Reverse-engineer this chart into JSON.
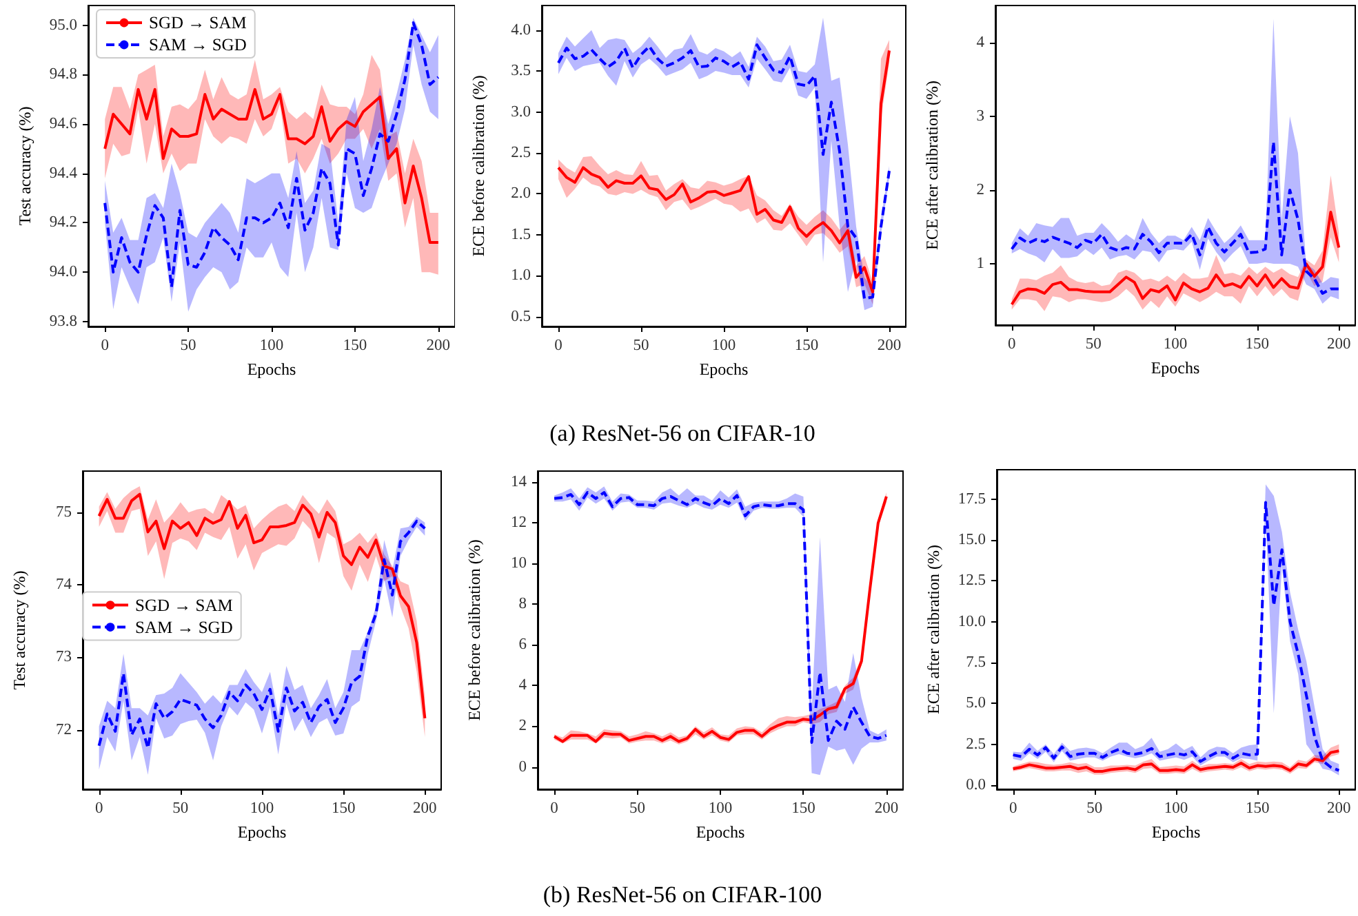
{
  "chart_data": [
    {
      "type": "line",
      "xlabel": "Epochs",
      "ylabel": "Test accuracy (%)",
      "legend": "top left",
      "xlim": [
        -10,
        210
      ],
      "xticks": [
        0,
        50,
        100,
        150,
        200
      ],
      "ylim": [
        93.78,
        95.08
      ],
      "yticks": [
        93.8,
        {
          "value": 94,
          "label": "94.0"
        },
        94.2,
        94.4,
        94.6,
        94.8,
        {
          "value": 95,
          "label": "95.0"
        }
      ],
      "x": [
        0,
        5,
        10,
        15,
        20,
        25,
        30,
        35,
        40,
        45,
        50,
        55,
        60,
        65,
        70,
        75,
        80,
        85,
        90,
        95,
        100,
        105,
        110,
        115,
        120,
        125,
        130,
        135,
        140,
        145,
        150,
        155,
        160,
        165,
        170,
        175,
        180,
        185,
        190,
        195,
        200
      ],
      "series": [
        {
          "name": "SGD → SAM",
          "color": "#ff0000",
          "line_style": "solid",
          "values": [
            94.5,
            94.64,
            94.6,
            94.56,
            94.74,
            94.62,
            94.74,
            94.46,
            94.58,
            94.55,
            94.55,
            94.56,
            94.72,
            94.62,
            94.66,
            94.64,
            94.62,
            94.62,
            94.74,
            94.62,
            94.64,
            94.72,
            94.54,
            94.54,
            94.52,
            94.55,
            94.67,
            94.53,
            94.58,
            94.61,
            94.59,
            94.65,
            94.68,
            94.71,
            94.46,
            94.5,
            94.28,
            94.43,
            94.3,
            94.12,
            94.12
          ],
          "upper": [
            94.62,
            94.75,
            94.75,
            94.66,
            94.8,
            94.82,
            94.84,
            94.55,
            94.67,
            94.68,
            94.66,
            94.7,
            94.82,
            94.7,
            94.79,
            94.72,
            94.7,
            94.72,
            94.86,
            94.7,
            94.72,
            94.75,
            94.65,
            94.62,
            94.65,
            94.62,
            94.76,
            94.68,
            94.67,
            94.67,
            94.64,
            94.72,
            94.88,
            94.82,
            94.55,
            94.57,
            94.4,
            94.54,
            94.45,
            94.24,
            94.24
          ],
          "lower": [
            94.38,
            94.52,
            94.47,
            94.48,
            94.66,
            94.44,
            94.6,
            94.4,
            94.48,
            94.41,
            94.44,
            94.44,
            94.62,
            94.55,
            94.52,
            94.55,
            94.54,
            94.52,
            94.62,
            94.55,
            94.58,
            94.68,
            94.44,
            94.46,
            94.4,
            94.46,
            94.54,
            94.44,
            94.48,
            94.54,
            94.54,
            94.58,
            94.5,
            94.58,
            94.37,
            94.4,
            94.18,
            94.3,
            94.0,
            94.0,
            93.99
          ]
        },
        {
          "name": "SAM → SGD",
          "color": "#0000ff",
          "line_style": "dashed",
          "values": [
            94.28,
            94.0,
            94.14,
            94.04,
            94.0,
            94.15,
            94.27,
            94.22,
            93.94,
            94.25,
            94.03,
            94.02,
            94.08,
            94.18,
            94.14,
            94.11,
            94.05,
            94.22,
            94.22,
            94.2,
            94.22,
            94.28,
            94.18,
            94.38,
            94.17,
            94.24,
            94.42,
            94.36,
            94.11,
            94.5,
            94.48,
            94.31,
            94.42,
            94.56,
            94.53,
            94.64,
            94.78,
            95.01,
            94.92,
            94.76,
            94.79
          ],
          "upper": [
            94.37,
            94.16,
            94.22,
            94.13,
            94.13,
            94.3,
            94.32,
            94.26,
            94.44,
            94.32,
            94.16,
            94.14,
            94.2,
            94.24,
            94.28,
            94.24,
            94.16,
            94.38,
            94.36,
            94.38,
            94.4,
            94.4,
            94.3,
            94.49,
            94.28,
            94.33,
            94.52,
            94.5,
            94.2,
            94.62,
            94.71,
            94.45,
            94.58,
            94.75,
            94.6,
            94.72,
            94.86,
            95.03,
            94.96,
            94.89,
            94.96
          ],
          "lower": [
            94.2,
            93.85,
            94.02,
            93.94,
            93.87,
            94.02,
            94.04,
            94.14,
            93.88,
            94.12,
            93.84,
            93.93,
            93.98,
            94.02,
            94.0,
            93.93,
            93.96,
            94.1,
            94.06,
            94.06,
            94.12,
            94.02,
            93.98,
            94.24,
            94.0,
            94.1,
            94.3,
            94.1,
            94.09,
            94.4,
            94.26,
            94.24,
            94.26,
            94.36,
            94.44,
            94.52,
            94.66,
            94.92,
            94.76,
            94.65,
            94.62
          ]
        }
      ]
    },
    {
      "type": "line",
      "xlabel": "Epochs",
      "ylabel": "ECE before calibration (%)",
      "annotations": [
        "(a) ResNet-56 on CIFAR-10"
      ],
      "xlim": [
        -10,
        210
      ],
      "xticks": [
        0,
        50,
        100,
        150,
        200
      ],
      "ylim": [
        0.38,
        4.3
      ],
      "yticks": [
        0.5,
        {
          "value": 1,
          "label": "1.0"
        },
        1.5,
        {
          "value": 2,
          "label": "2.0"
        },
        2.5,
        {
          "value": 3,
          "label": "3.0"
        },
        3.5,
        {
          "value": 4,
          "label": "4.0"
        }
      ],
      "x": [
        0,
        5,
        10,
        15,
        20,
        25,
        30,
        35,
        40,
        45,
        50,
        55,
        60,
        65,
        70,
        75,
        80,
        85,
        90,
        95,
        100,
        105,
        110,
        115,
        120,
        125,
        130,
        135,
        140,
        145,
        150,
        155,
        160,
        165,
        170,
        175,
        180,
        185,
        190,
        195,
        200
      ],
      "series": [
        {
          "color": "#ff0000",
          "line_style": "solid",
          "values": [
            2.32,
            2.2,
            2.14,
            2.32,
            2.24,
            2.2,
            2.08,
            2.16,
            2.13,
            2.13,
            2.22,
            2.07,
            2.05,
            1.93,
            1.99,
            2.12,
            1.9,
            1.95,
            2.02,
            2.03,
            1.98,
            2.01,
            2.04,
            2.21,
            1.75,
            1.81,
            1.68,
            1.65,
            1.84,
            1.58,
            1.48,
            1.58,
            1.65,
            1.55,
            1.4,
            1.55,
            0.98,
            1.1,
            0.8,
            3.1,
            3.75
          ],
          "upper": [
            2.42,
            2.32,
            2.26,
            2.45,
            2.46,
            2.34,
            2.24,
            2.29,
            2.24,
            2.23,
            2.4,
            2.22,
            2.23,
            2.04,
            2.12,
            2.18,
            2.08,
            2.06,
            2.16,
            2.14,
            2.1,
            2.13,
            2.18,
            2.22,
            1.98,
            1.92,
            1.8,
            1.73,
            1.88,
            1.72,
            1.62,
            1.72,
            1.8,
            1.7,
            1.56,
            1.68,
            1.12,
            1.24,
            0.92,
            3.65,
            3.88
          ],
          "lower": [
            2.18,
            1.95,
            2.06,
            2.2,
            2.12,
            2.09,
            2.0,
            1.98,
            2.02,
            2.0,
            2.05,
            1.99,
            1.96,
            1.8,
            1.9,
            1.93,
            1.8,
            1.84,
            1.89,
            1.94,
            1.88,
            1.86,
            1.78,
            1.82,
            1.64,
            1.7,
            1.56,
            1.55,
            1.64,
            1.5,
            1.36,
            1.5,
            1.52,
            1.42,
            1.28,
            1.36,
            0.86,
            0.9,
            0.65,
            2.92,
            3.6
          ]
        },
        {
          "color": "#0000ff",
          "line_style": "dashed",
          "values": [
            3.6,
            3.78,
            3.65,
            3.68,
            3.76,
            3.65,
            3.55,
            3.62,
            3.78,
            3.54,
            3.7,
            3.8,
            3.65,
            3.56,
            3.6,
            3.66,
            3.75,
            3.55,
            3.56,
            3.66,
            3.62,
            3.55,
            3.61,
            3.4,
            3.82,
            3.66,
            3.51,
            3.48,
            3.68,
            3.34,
            3.32,
            3.44,
            2.48,
            3.12,
            2.52,
            1.6,
            1.46,
            0.72,
            0.74,
            1.6,
            2.28
          ],
          "upper": [
            3.72,
            3.92,
            3.8,
            3.9,
            4.0,
            3.78,
            3.88,
            3.9,
            3.88,
            3.72,
            3.8,
            3.92,
            3.8,
            3.66,
            3.76,
            3.78,
            3.95,
            3.74,
            3.7,
            3.78,
            3.74,
            3.67,
            3.74,
            3.55,
            3.92,
            3.8,
            3.62,
            3.64,
            3.82,
            3.5,
            3.48,
            3.58,
            4.15,
            3.38,
            3.42,
            2.6,
            1.6,
            0.98,
            0.86,
            1.7,
            2.34
          ],
          "lower": [
            3.46,
            3.66,
            3.5,
            3.56,
            3.58,
            3.6,
            3.44,
            3.32,
            3.62,
            3.42,
            3.58,
            3.65,
            3.56,
            3.44,
            3.48,
            3.52,
            3.6,
            3.4,
            3.44,
            3.5,
            3.48,
            3.45,
            3.45,
            3.3,
            3.65,
            3.52,
            3.38,
            3.36,
            3.54,
            3.2,
            3.16,
            3.3,
            1.16,
            2.65,
            1.6,
            0.8,
            1.2,
            0.58,
            0.62,
            1.5,
            2.2
          ]
        }
      ]
    },
    {
      "type": "line",
      "xlabel": "Epochs",
      "ylabel": "ECE after calibration (%)",
      "xlim": [
        -10,
        210
      ],
      "xticks": [
        0,
        50,
        100,
        150,
        200
      ],
      "ylim": [
        0.17,
        4.5
      ],
      "yticks": [
        1,
        2,
        3,
        4
      ],
      "x": [
        0,
        5,
        10,
        15,
        20,
        25,
        30,
        35,
        40,
        45,
        50,
        55,
        60,
        65,
        70,
        75,
        80,
        85,
        90,
        95,
        100,
        105,
        110,
        115,
        120,
        125,
        130,
        135,
        140,
        145,
        150,
        155,
        160,
        165,
        170,
        175,
        180,
        185,
        190,
        195,
        200
      ],
      "series": [
        {
          "color": "#ff0000",
          "line_style": "solid",
          "values": [
            0.45,
            0.62,
            0.66,
            0.65,
            0.6,
            0.72,
            0.75,
            0.65,
            0.65,
            0.63,
            0.62,
            0.62,
            0.62,
            0.72,
            0.82,
            0.75,
            0.53,
            0.65,
            0.62,
            0.7,
            0.51,
            0.74,
            0.66,
            0.62,
            0.67,
            0.85,
            0.7,
            0.73,
            0.68,
            0.83,
            0.7,
            0.85,
            0.68,
            0.8,
            0.69,
            0.67,
            1.0,
            0.83,
            0.96,
            1.7,
            1.22
          ],
          "upper": [
            0.52,
            0.8,
            0.8,
            0.78,
            0.84,
            0.88,
            0.98,
            0.82,
            0.76,
            0.74,
            0.76,
            0.7,
            0.72,
            0.88,
            0.92,
            0.88,
            0.78,
            0.8,
            0.76,
            0.84,
            0.76,
            0.88,
            0.8,
            0.8,
            0.82,
            1.12,
            0.86,
            0.88,
            0.84,
            0.96,
            0.86,
            0.96,
            0.88,
            0.94,
            0.86,
            0.82,
            1.06,
            0.98,
            1.18,
            2.2,
            1.42
          ],
          "lower": [
            0.38,
            0.52,
            0.52,
            0.5,
            0.36,
            0.56,
            0.54,
            0.48,
            0.52,
            0.52,
            0.5,
            0.48,
            0.5,
            0.56,
            0.66,
            0.56,
            0.38,
            0.5,
            0.4,
            0.56,
            0.42,
            0.6,
            0.54,
            0.48,
            0.54,
            0.62,
            0.56,
            0.56,
            0.46,
            0.7,
            0.56,
            0.7,
            0.56,
            0.66,
            0.54,
            0.5,
            0.9,
            0.7,
            0.76,
            1.36,
            1.02
          ]
        },
        {
          "color": "#0000ff",
          "line_style": "dashed",
          "values": [
            1.2,
            1.35,
            1.28,
            1.33,
            1.3,
            1.36,
            1.32,
            1.28,
            1.22,
            1.32,
            1.28,
            1.4,
            1.22,
            1.18,
            1.22,
            1.2,
            1.4,
            1.3,
            1.15,
            1.28,
            1.28,
            1.28,
            1.4,
            1.12,
            1.5,
            1.28,
            1.16,
            1.28,
            1.4,
            1.15,
            1.16,
            1.2,
            2.65,
            1.12,
            2.0,
            1.6,
            0.9,
            0.8,
            0.6,
            0.66,
            0.66
          ],
          "upper": [
            1.28,
            1.48,
            1.38,
            1.55,
            1.52,
            1.5,
            1.62,
            1.62,
            1.38,
            1.42,
            1.42,
            1.55,
            1.44,
            1.3,
            1.4,
            1.32,
            1.62,
            1.42,
            1.28,
            1.38,
            1.38,
            1.32,
            1.5,
            1.32,
            1.62,
            1.44,
            1.28,
            1.38,
            1.52,
            1.32,
            1.32,
            1.32,
            4.32,
            1.6,
            3.0,
            2.5,
            1.0,
            0.92,
            0.74,
            0.82,
            0.8
          ],
          "lower": [
            1.14,
            1.2,
            1.14,
            1.1,
            1.02,
            1.2,
            1.08,
            1.08,
            1.1,
            1.2,
            1.12,
            1.22,
            1.06,
            1.1,
            1.12,
            1.06,
            1.18,
            1.16,
            1.02,
            1.18,
            1.2,
            1.18,
            1.3,
            0.92,
            1.34,
            1.16,
            1.02,
            1.14,
            1.24,
            1.0,
            1.0,
            1.02,
            1.0,
            1.0,
            1.0,
            0.96,
            0.72,
            0.66,
            0.46,
            0.56,
            0.52
          ]
        }
      ]
    },
    {
      "type": "line",
      "xlabel": "Epochs",
      "ylabel": "Test accuracy (%)",
      "legend": "left",
      "xlim": [
        -10,
        210
      ],
      "xticks": [
        0,
        50,
        100,
        150,
        200
      ],
      "ylim": [
        71.18,
        75.57
      ],
      "yticks": [
        72,
        73,
        74,
        75
      ],
      "x": [
        0,
        5,
        10,
        15,
        20,
        25,
        30,
        35,
        40,
        45,
        50,
        55,
        60,
        65,
        70,
        75,
        80,
        85,
        90,
        95,
        100,
        105,
        110,
        115,
        120,
        125,
        130,
        135,
        140,
        145,
        150,
        155,
        160,
        165,
        170,
        175,
        180,
        185,
        190,
        195,
        200
      ],
      "series": [
        {
          "name": "SGD → SAM",
          "color": "#ff0000",
          "line_style": "solid",
          "values": [
            74.95,
            75.18,
            74.92,
            74.92,
            75.16,
            75.25,
            74.73,
            74.88,
            74.5,
            74.88,
            74.78,
            74.86,
            74.68,
            74.92,
            74.85,
            74.9,
            75.15,
            74.78,
            74.96,
            74.58,
            74.62,
            74.8,
            74.8,
            74.82,
            74.86,
            75.1,
            74.98,
            74.66,
            75.0,
            74.86,
            74.4,
            74.28,
            74.52,
            74.38,
            74.62,
            74.26,
            74.22,
            73.85,
            73.7,
            73.2,
            72.16
          ],
          "upper": [
            75.08,
            75.28,
            75.05,
            75.2,
            75.3,
            75.36,
            74.9,
            75.18,
            74.86,
            74.98,
            75.14,
            75.0,
            75.04,
            75.06,
            74.98,
            75.24,
            75.15,
            75.04,
            75.1,
            74.78,
            74.9,
            75.0,
            75.08,
            75.12,
            75.02,
            75.24,
            75.1,
            74.98,
            75.18,
            75.02,
            74.56,
            74.62,
            74.72,
            74.58,
            74.72,
            74.42,
            74.26,
            74.05,
            74.0,
            73.5,
            72.45
          ],
          "lower": [
            74.8,
            75.02,
            74.72,
            74.72,
            75.02,
            75.05,
            74.4,
            74.6,
            74.08,
            74.58,
            74.64,
            74.6,
            74.48,
            74.72,
            74.66,
            74.62,
            74.8,
            74.36,
            74.56,
            74.2,
            74.44,
            74.5,
            74.56,
            74.54,
            74.64,
            74.88,
            74.76,
            74.3,
            74.72,
            74.64,
            74.12,
            73.92,
            74.28,
            74.04,
            74.4,
            74.05,
            74.12,
            73.7,
            73.4,
            72.8,
            71.9
          ]
        },
        {
          "name": "SAM → SGD",
          "color": "#0000ff",
          "line_style": "dashed",
          "values": [
            71.78,
            72.22,
            71.98,
            72.78,
            71.93,
            72.15,
            71.75,
            72.36,
            72.16,
            72.25,
            72.42,
            72.38,
            72.34,
            72.15,
            72.03,
            72.2,
            72.52,
            72.4,
            72.62,
            72.5,
            72.28,
            72.56,
            71.98,
            72.58,
            72.26,
            72.38,
            72.1,
            72.32,
            72.42,
            72.1,
            72.3,
            72.65,
            72.74,
            73.3,
            73.6,
            74.35,
            73.86,
            74.6,
            74.72,
            74.88,
            74.78
          ],
          "upper": [
            72.05,
            72.4,
            72.3,
            73.05,
            72.3,
            72.3,
            72.2,
            72.48,
            72.5,
            72.58,
            72.78,
            72.65,
            72.52,
            72.36,
            72.48,
            72.36,
            72.62,
            72.62,
            72.84,
            72.66,
            72.52,
            72.8,
            72.2,
            72.88,
            72.55,
            72.62,
            72.3,
            72.48,
            72.7,
            72.3,
            72.52,
            73.1,
            73.1,
            73.35,
            73.7,
            74.62,
            74.2,
            74.78,
            74.8,
            74.94,
            74.86
          ],
          "lower": [
            71.45,
            71.9,
            71.7,
            72.4,
            71.58,
            71.9,
            71.38,
            72.16,
            71.88,
            71.92,
            72.08,
            72.12,
            72.14,
            71.96,
            71.58,
            72.05,
            72.32,
            72.2,
            72.38,
            72.28,
            71.95,
            72.32,
            71.66,
            72.36,
            71.98,
            72.16,
            71.9,
            72.1,
            72.16,
            71.92,
            71.95,
            72.32,
            72.4,
            73.05,
            73.5,
            74.08,
            73.55,
            74.4,
            74.62,
            74.8,
            74.68
          ]
        }
      ]
    },
    {
      "type": "line",
      "xlabel": "Epochs",
      "ylabel": "ECE before calibration (%)",
      "annotations": [
        "(b) ResNet-56 on CIFAR-100"
      ],
      "xlim": [
        -10,
        210
      ],
      "xticks": [
        0,
        50,
        100,
        150,
        200
      ],
      "ylim": [
        -1.1,
        14.55
      ],
      "yticks": [
        0,
        2,
        4,
        6,
        8,
        10,
        12,
        14
      ],
      "x": [
        0,
        5,
        10,
        15,
        20,
        25,
        30,
        35,
        40,
        45,
        50,
        55,
        60,
        65,
        70,
        75,
        80,
        85,
        90,
        95,
        100,
        105,
        110,
        115,
        120,
        125,
        130,
        135,
        140,
        145,
        150,
        155,
        160,
        165,
        170,
        175,
        180,
        185,
        190,
        195,
        200
      ],
      "series": [
        {
          "color": "#ff0000",
          "line_style": "solid",
          "values": [
            1.5,
            1.25,
            1.55,
            1.55,
            1.55,
            1.25,
            1.65,
            1.6,
            1.6,
            1.3,
            1.4,
            1.5,
            1.5,
            1.3,
            1.5,
            1.25,
            1.4,
            1.85,
            1.5,
            1.75,
            1.45,
            1.35,
            1.7,
            1.8,
            1.8,
            1.5,
            1.85,
            2.05,
            2.2,
            2.2,
            2.35,
            2.3,
            2.55,
            2.85,
            2.95,
            3.85,
            4.1,
            5.2,
            8.7,
            12.0,
            13.3
          ],
          "upper": [
            1.6,
            1.45,
            1.8,
            1.75,
            1.65,
            1.5,
            1.85,
            1.8,
            1.75,
            1.5,
            1.6,
            1.75,
            1.65,
            1.5,
            1.7,
            1.45,
            1.55,
            2.0,
            1.7,
            1.95,
            1.6,
            1.55,
            1.9,
            2.0,
            1.95,
            1.7,
            2.1,
            2.4,
            2.5,
            2.45,
            2.5,
            2.6,
            2.85,
            3.0,
            3.2,
            4.0,
            4.4,
            5.4,
            8.9,
            12.2,
            13.5
          ],
          "lower": [
            1.35,
            1.15,
            1.35,
            1.35,
            1.35,
            1.15,
            1.45,
            1.4,
            1.45,
            1.15,
            1.25,
            1.3,
            1.3,
            1.15,
            1.3,
            1.1,
            1.25,
            1.6,
            1.35,
            1.55,
            1.3,
            1.2,
            1.55,
            1.6,
            1.6,
            1.35,
            1.65,
            1.85,
            2.0,
            2.0,
            2.2,
            2.1,
            2.2,
            2.6,
            2.7,
            3.6,
            3.8,
            5.0,
            8.5,
            11.8,
            13.0
          ]
        },
        {
          "color": "#0000ff",
          "line_style": "dashed",
          "values": [
            13.2,
            13.25,
            13.4,
            12.9,
            13.5,
            13.2,
            13.5,
            12.8,
            13.2,
            13.25,
            12.9,
            12.9,
            12.85,
            13.2,
            13.3,
            13.1,
            12.9,
            13.2,
            13.0,
            12.85,
            13.2,
            12.95,
            13.35,
            12.35,
            12.8,
            12.9,
            12.85,
            12.85,
            12.95,
            12.95,
            12.65,
            1.2,
            4.65,
            1.3,
            2.25,
            1.85,
            2.95,
            2.2,
            1.5,
            1.4,
            1.55
          ],
          "upper": [
            13.35,
            13.5,
            13.7,
            13.2,
            13.75,
            13.5,
            13.8,
            13.05,
            13.45,
            13.4,
            13.1,
            13.1,
            13.05,
            13.5,
            13.7,
            13.35,
            13.7,
            13.35,
            13.35,
            13.1,
            13.6,
            13.25,
            13.65,
            12.8,
            13.0,
            13.05,
            13.05,
            13.05,
            13.2,
            13.45,
            13.3,
            2.8,
            11.3,
            3.8,
            4.0,
            3.2,
            5.6,
            3.4,
            1.8,
            1.6,
            1.85
          ],
          "lower": [
            13.05,
            13.05,
            13.15,
            12.6,
            13.25,
            12.95,
            13.2,
            12.6,
            13.0,
            13.05,
            12.75,
            12.75,
            12.65,
            12.95,
            13.0,
            12.85,
            12.75,
            12.95,
            12.75,
            12.65,
            12.9,
            12.75,
            13.0,
            12.1,
            12.6,
            12.75,
            12.7,
            12.7,
            12.75,
            12.75,
            12.3,
            -0.3,
            -0.4,
            1.0,
            0.8,
            0.9,
            0.1,
            0.9,
            1.2,
            1.2,
            1.3
          ]
        }
      ]
    },
    {
      "type": "line",
      "xlabel": "Epochs",
      "ylabel": "ECE after calibration (%)",
      "xlim": [
        -10,
        210
      ],
      "xticks": [
        0,
        50,
        100,
        150,
        200
      ],
      "ylim": [
        -0.25,
        19.3
      ],
      "yticks": [
        {
          "value": 0,
          "label": "0.0"
        },
        2.5,
        {
          "value": 5,
          "label": "5.0"
        },
        7.5,
        {
          "value": 10,
          "label": "10.0"
        },
        12.5,
        {
          "value": 15,
          "label": "15.0"
        },
        17.5
      ],
      "x": [
        0,
        5,
        10,
        15,
        20,
        25,
        30,
        35,
        40,
        45,
        50,
        55,
        60,
        65,
        70,
        75,
        80,
        85,
        90,
        95,
        100,
        105,
        110,
        115,
        120,
        125,
        130,
        135,
        140,
        145,
        150,
        155,
        160,
        165,
        170,
        175,
        180,
        185,
        190,
        195,
        200
      ],
      "series": [
        {
          "color": "#ff0000",
          "line_style": "solid",
          "values": [
            1.0,
            1.1,
            1.25,
            1.15,
            1.05,
            1.05,
            1.1,
            1.15,
            1.0,
            1.1,
            0.85,
            0.85,
            0.95,
            1.0,
            1.05,
            0.95,
            1.25,
            1.3,
            0.9,
            0.9,
            0.95,
            0.9,
            1.25,
            0.95,
            1.05,
            1.1,
            1.15,
            1.1,
            1.35,
            1.05,
            1.2,
            1.15,
            1.2,
            1.15,
            0.9,
            1.3,
            1.2,
            1.6,
            1.5,
            2.0,
            2.1
          ],
          "upper": [
            1.15,
            1.3,
            1.45,
            1.4,
            1.3,
            1.25,
            1.3,
            1.4,
            1.3,
            1.35,
            1.1,
            1.1,
            1.2,
            1.2,
            1.25,
            1.2,
            1.45,
            1.6,
            1.1,
            1.15,
            1.2,
            1.15,
            1.5,
            1.15,
            1.3,
            1.3,
            1.35,
            1.3,
            1.6,
            1.3,
            1.45,
            1.4,
            1.45,
            1.4,
            1.1,
            1.55,
            1.45,
            1.85,
            1.8,
            2.3,
            2.5
          ],
          "lower": [
            0.85,
            0.95,
            1.05,
            0.95,
            0.85,
            0.85,
            0.9,
            0.9,
            0.75,
            0.85,
            0.65,
            0.65,
            0.75,
            0.8,
            0.85,
            0.75,
            1.0,
            1.05,
            0.7,
            0.7,
            0.75,
            0.7,
            1.0,
            0.75,
            0.85,
            0.9,
            0.95,
            0.9,
            1.1,
            0.85,
            1.0,
            0.95,
            1.0,
            0.95,
            0.7,
            1.05,
            1.0,
            1.4,
            1.3,
            1.75,
            1.9
          ]
        },
        {
          "color": "#0000ff",
          "line_style": "dashed",
          "values": [
            1.85,
            1.75,
            2.2,
            1.85,
            2.3,
            1.65,
            2.35,
            1.75,
            1.9,
            1.95,
            1.95,
            1.7,
            2.0,
            2.2,
            1.95,
            1.9,
            2.0,
            2.25,
            1.75,
            1.85,
            1.95,
            1.85,
            2.05,
            1.45,
            1.75,
            2.0,
            2.0,
            1.65,
            1.95,
            1.85,
            1.9,
            17.3,
            11.0,
            14.4,
            10.0,
            8.0,
            5.5,
            3.0,
            1.5,
            1.1,
            0.9
          ],
          "upper": [
            2.05,
            2.0,
            2.6,
            2.1,
            2.5,
            1.9,
            2.6,
            2.1,
            2.25,
            2.3,
            2.2,
            1.95,
            2.3,
            2.6,
            2.6,
            2.2,
            2.4,
            2.9,
            2.05,
            2.2,
            2.55,
            2.15,
            2.4,
            1.7,
            2.15,
            2.35,
            2.3,
            1.95,
            2.3,
            2.45,
            2.5,
            18.4,
            17.7,
            15.5,
            11.8,
            9.5,
            7.6,
            4.8,
            2.2,
            1.5,
            1.3
          ],
          "lower": [
            1.6,
            1.5,
            1.95,
            1.6,
            2.05,
            1.4,
            2.1,
            1.5,
            1.6,
            1.7,
            1.7,
            1.5,
            1.75,
            1.9,
            1.75,
            1.65,
            1.75,
            1.95,
            1.5,
            1.6,
            1.7,
            1.55,
            1.75,
            1.2,
            1.5,
            1.75,
            1.75,
            1.4,
            1.65,
            1.6,
            1.5,
            16.5,
            4.4,
            13.4,
            8.8,
            6.8,
            2.5,
            1.8,
            1.0,
            0.9,
            0.6
          ]
        }
      ]
    }
  ]
}
